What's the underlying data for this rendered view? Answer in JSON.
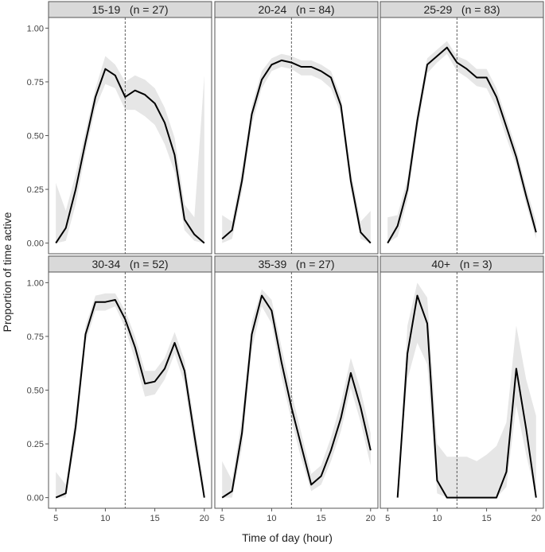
{
  "figure": {
    "xlabel": "Time of day (hour)",
    "ylabel": "Proportion of time active"
  },
  "chart_data": {
    "type": "line",
    "xlabel": "Time of day (hour)",
    "ylabel": "Proportion of time active",
    "xlim": [
      5,
      20
    ],
    "ylim": [
      0,
      1
    ],
    "x_ticks": [
      5,
      10,
      15,
      20
    ],
    "x_tick_labels": [
      "5",
      "10",
      "15",
      "20"
    ],
    "y_ticks": [
      0,
      0.25,
      0.5,
      0.75,
      1
    ],
    "y_tick_labels": [
      "0.00",
      "0.25",
      "0.50",
      "0.75",
      "1.00"
    ],
    "reference_line_x": 12,
    "grid": false,
    "line_color": "#000000",
    "ribbon_color": "#e6e6e6",
    "strip_color": "#d9d9d9",
    "panels": [
      {
        "title": "15-19   (n = 27)",
        "x": [
          5,
          6,
          7,
          8,
          9,
          10,
          11,
          12,
          13,
          14,
          15,
          16,
          17,
          18,
          19,
          20
        ],
        "y": [
          0.0,
          0.07,
          0.25,
          0.47,
          0.68,
          0.81,
          0.78,
          0.68,
          0.71,
          0.69,
          0.65,
          0.56,
          0.41,
          0.11,
          0.04,
          0.0
        ],
        "lower": [
          0.0,
          0.01,
          0.18,
          0.42,
          0.63,
          0.74,
          0.72,
          0.62,
          0.62,
          0.59,
          0.55,
          0.46,
          0.33,
          0.06,
          0.01,
          0.0
        ],
        "upper": [
          0.28,
          0.15,
          0.32,
          0.52,
          0.72,
          0.87,
          0.83,
          0.75,
          0.78,
          0.76,
          0.72,
          0.63,
          0.49,
          0.18,
          0.12,
          0.78
        ]
      },
      {
        "title": "20-24   (n = 84)",
        "x": [
          5,
          6,
          7,
          8,
          9,
          10,
          11,
          12,
          13,
          14,
          15,
          16,
          17,
          18,
          19,
          20
        ],
        "y": [
          0.02,
          0.06,
          0.29,
          0.6,
          0.76,
          0.83,
          0.85,
          0.84,
          0.82,
          0.82,
          0.8,
          0.77,
          0.64,
          0.29,
          0.05,
          0.0
        ],
        "lower": [
          0.0,
          0.02,
          0.24,
          0.55,
          0.72,
          0.8,
          0.82,
          0.81,
          0.78,
          0.78,
          0.76,
          0.72,
          0.6,
          0.25,
          0.02,
          0.0
        ],
        "upper": [
          0.13,
          0.1,
          0.34,
          0.64,
          0.8,
          0.86,
          0.88,
          0.87,
          0.85,
          0.85,
          0.83,
          0.8,
          0.68,
          0.34,
          0.1,
          0.15
        ]
      },
      {
        "title": "25-29   (n = 83)",
        "x": [
          5,
          6,
          7,
          8,
          9,
          10,
          11,
          12,
          13,
          14,
          15,
          16,
          17,
          18,
          19,
          20
        ],
        "y": [
          0.0,
          0.08,
          0.25,
          0.57,
          0.83,
          0.87,
          0.91,
          0.84,
          0.81,
          0.77,
          0.77,
          0.68,
          0.54,
          0.4,
          0.22,
          0.05
        ],
        "lower": [
          0.0,
          0.03,
          0.2,
          0.52,
          0.79,
          0.84,
          0.88,
          0.8,
          0.77,
          0.73,
          0.72,
          0.63,
          0.49,
          0.36,
          0.18,
          0.02
        ],
        "upper": [
          0.12,
          0.13,
          0.3,
          0.61,
          0.86,
          0.9,
          0.94,
          0.87,
          0.85,
          0.81,
          0.81,
          0.72,
          0.58,
          0.44,
          0.26,
          0.1
        ]
      },
      {
        "title": "30-34   (n = 52)",
        "x": [
          5,
          6,
          7,
          8,
          9,
          10,
          11,
          12,
          13,
          14,
          15,
          16,
          17,
          18,
          19,
          20
        ],
        "y": [
          0.0,
          0.02,
          0.33,
          0.76,
          0.91,
          0.91,
          0.92,
          0.83,
          0.7,
          0.53,
          0.54,
          0.6,
          0.72,
          0.59,
          0.29,
          0.0
        ],
        "lower": [
          0.0,
          0.0,
          0.27,
          0.72,
          0.87,
          0.87,
          0.89,
          0.79,
          0.64,
          0.47,
          0.48,
          0.55,
          0.67,
          0.53,
          0.23,
          0.0
        ],
        "upper": [
          0.12,
          0.06,
          0.39,
          0.8,
          0.94,
          0.95,
          0.95,
          0.87,
          0.75,
          0.59,
          0.59,
          0.65,
          0.77,
          0.64,
          0.35,
          0.05
        ]
      },
      {
        "title": "35-39   (n = 27)",
        "x": [
          5,
          6,
          7,
          8,
          9,
          10,
          11,
          12,
          13,
          14,
          15,
          16,
          17,
          18,
          19,
          20
        ],
        "y": [
          0.0,
          0.03,
          0.3,
          0.76,
          0.94,
          0.87,
          0.63,
          0.42,
          0.24,
          0.06,
          0.1,
          0.22,
          0.37,
          0.58,
          0.42,
          0.22
        ],
        "lower": [
          0.0,
          0.0,
          0.23,
          0.69,
          0.89,
          0.81,
          0.56,
          0.36,
          0.18,
          0.03,
          0.06,
          0.17,
          0.31,
          0.51,
          0.35,
          0.15
        ],
        "upper": [
          0.17,
          0.08,
          0.37,
          0.82,
          0.97,
          0.92,
          0.7,
          0.49,
          0.3,
          0.11,
          0.15,
          0.28,
          0.44,
          0.65,
          0.5,
          0.3
        ]
      },
      {
        "title": "40+   (n = 3)",
        "x": [
          6,
          7,
          8,
          9,
          10,
          11,
          12,
          13,
          14,
          15,
          16,
          17,
          18,
          19,
          20
        ],
        "y": [
          0.0,
          0.67,
          0.94,
          0.81,
          0.08,
          0.0,
          0.0,
          0.0,
          0.0,
          0.0,
          0.0,
          0.12,
          0.6,
          0.32,
          0.0
        ],
        "lower": [
          0.0,
          0.55,
          0.72,
          0.62,
          0.02,
          0.0,
          0.0,
          0.0,
          0.0,
          0.0,
          0.0,
          0.05,
          0.43,
          0.2,
          0.0
        ],
        "upper": [
          0.0,
          0.8,
          1.0,
          0.93,
          0.25,
          0.19,
          0.19,
          0.19,
          0.17,
          0.2,
          0.24,
          0.35,
          0.8,
          0.55,
          0.38
        ]
      }
    ]
  }
}
